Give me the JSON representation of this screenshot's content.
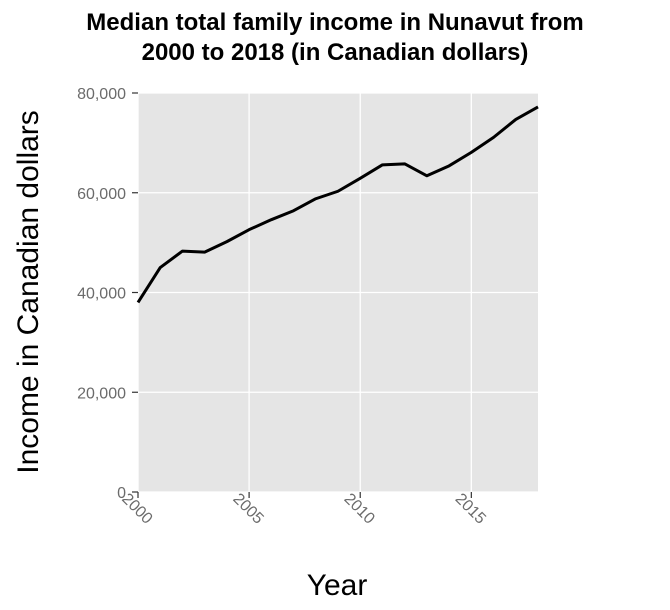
{
  "chart_data": {
    "type": "line",
    "title": "Median total family income in Nunavut from 2000 to 2018 (in Canadian dollars)",
    "title_lines": [
      "Median total family income in Nunavut from",
      "2000 to 2018 (in Canadian dollars)"
    ],
    "xlabel": "Year",
    "ylabel": "Income in Canadian dollars",
    "xlim": [
      2000,
      2018
    ],
    "ylim": [
      0,
      80000
    ],
    "x_ticks": [
      2000,
      2005,
      2010,
      2015
    ],
    "x_tick_labels": [
      "2000",
      "2005",
      "2010",
      "2015"
    ],
    "y_ticks": [
      0,
      20000,
      40000,
      60000,
      80000
    ],
    "y_tick_labels": [
      "0",
      "20,000",
      "40,000",
      "60,000",
      "80,000"
    ],
    "grid": true,
    "background": "#e5e5e5",
    "line_color": "#000000",
    "series": [
      {
        "x": [
          2000,
          2001,
          2002,
          2003,
          2004,
          2005,
          2006,
          2007,
          2008,
          2009,
          2010,
          2011,
          2012,
          2013,
          2014,
          2015,
          2016,
          2017,
          2018
        ],
        "values": [
          38000,
          45000,
          48300,
          48100,
          50200,
          52600,
          54600,
          56400,
          58800,
          60300,
          62900,
          65600,
          65800,
          63400,
          65400,
          68100,
          71100,
          74700,
          77200
        ]
      }
    ]
  }
}
